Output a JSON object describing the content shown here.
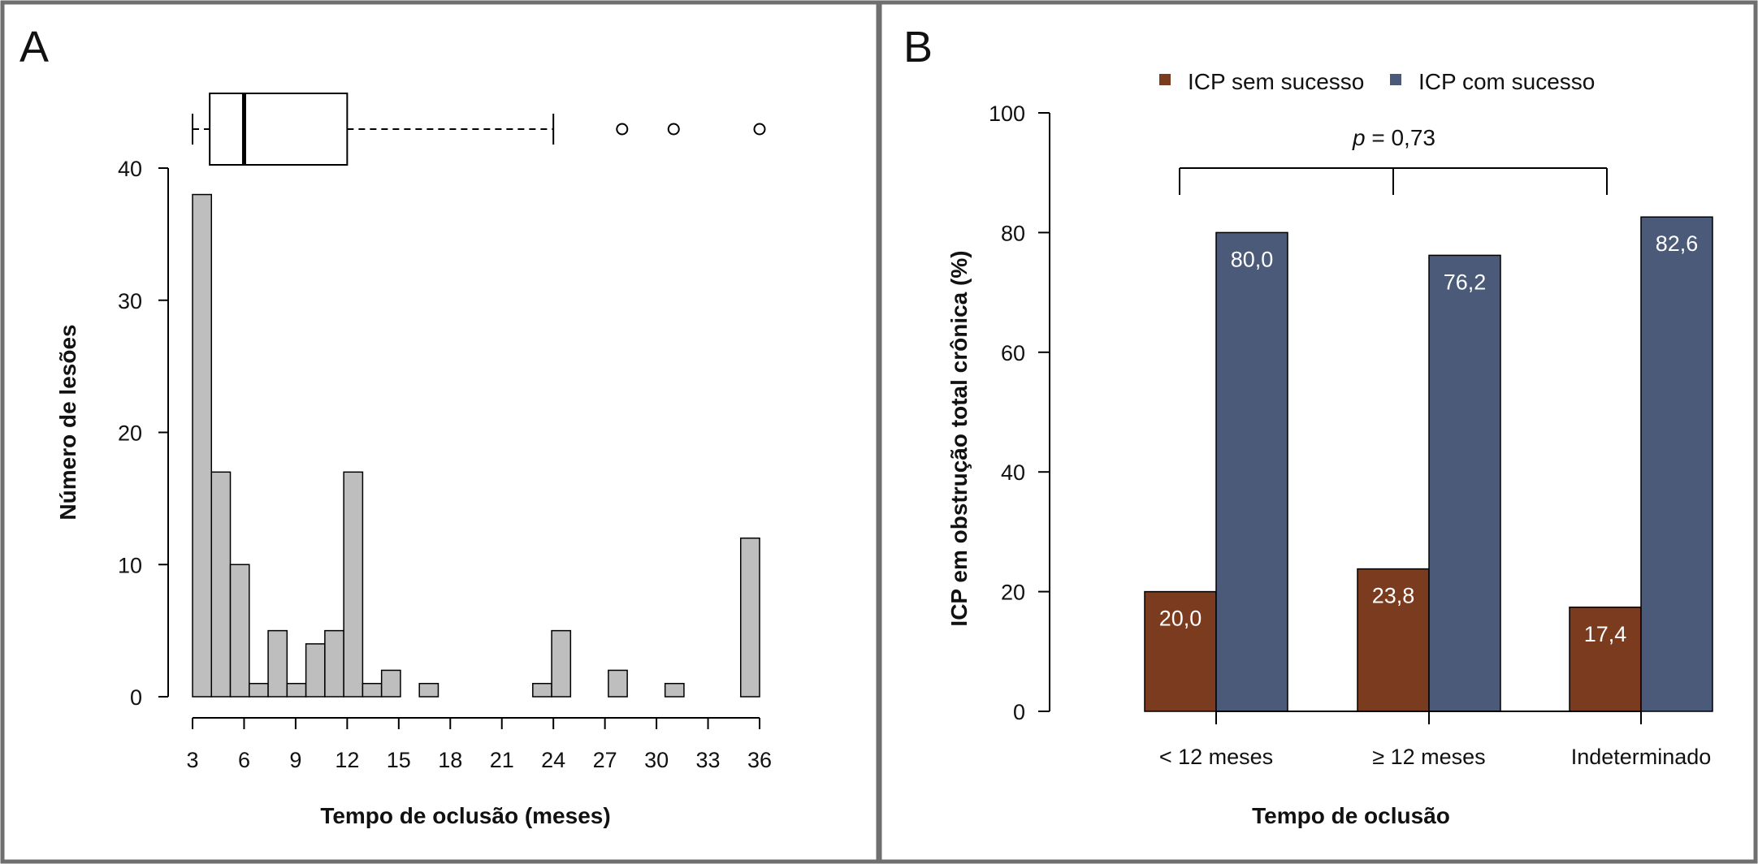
{
  "chart_data": [
    {
      "panel": "A",
      "type": "bar",
      "subtype": "histogram",
      "xlabel": "Tempo de oclusão (meses)",
      "ylabel": "Número de lesões",
      "xlim": [
        3,
        36
      ],
      "ylim": [
        0,
        40
      ],
      "xticks": [
        "3",
        "6",
        "9",
        "12",
        "15",
        "18",
        "21",
        "24",
        "27",
        "30",
        "33",
        "36"
      ],
      "yticks": [
        "0",
        "10",
        "20",
        "30",
        "40"
      ],
      "bin_width": 1.1,
      "bins": [
        {
          "start": 3.0,
          "end": 4.1,
          "count": 38
        },
        {
          "start": 4.1,
          "end": 5.2,
          "count": 17
        },
        {
          "start": 5.2,
          "end": 6.3,
          "count": 10
        },
        {
          "start": 6.3,
          "end": 7.4,
          "count": 1
        },
        {
          "start": 7.4,
          "end": 8.5,
          "count": 5
        },
        {
          "start": 8.5,
          "end": 9.6,
          "count": 1
        },
        {
          "start": 9.6,
          "end": 10.7,
          "count": 4
        },
        {
          "start": 10.7,
          "end": 11.8,
          "count": 5
        },
        {
          "start": 11.8,
          "end": 12.9,
          "count": 17
        },
        {
          "start": 12.9,
          "end": 14.0,
          "count": 1
        },
        {
          "start": 14.0,
          "end": 15.1,
          "count": 2
        },
        {
          "start": 15.1,
          "end": 16.2,
          "count": 0
        },
        {
          "start": 16.2,
          "end": 17.3,
          "count": 1
        },
        {
          "start": 17.3,
          "end": 18.4,
          "count": 0
        },
        {
          "start": 18.4,
          "end": 19.5,
          "count": 0
        },
        {
          "start": 19.5,
          "end": 20.6,
          "count": 0
        },
        {
          "start": 20.6,
          "end": 21.7,
          "count": 0
        },
        {
          "start": 21.7,
          "end": 22.8,
          "count": 0
        },
        {
          "start": 22.8,
          "end": 23.9,
          "count": 1
        },
        {
          "start": 23.9,
          "end": 25.0,
          "count": 5
        },
        {
          "start": 25.0,
          "end": 26.1,
          "count": 0
        },
        {
          "start": 26.1,
          "end": 27.2,
          "count": 0
        },
        {
          "start": 27.2,
          "end": 28.3,
          "count": 2
        },
        {
          "start": 28.3,
          "end": 29.4,
          "count": 0
        },
        {
          "start": 29.4,
          "end": 30.5,
          "count": 0
        },
        {
          "start": 30.5,
          "end": 31.6,
          "count": 1
        },
        {
          "start": 31.6,
          "end": 32.7,
          "count": 0
        },
        {
          "start": 32.7,
          "end": 33.8,
          "count": 0
        },
        {
          "start": 33.8,
          "end": 34.9,
          "count": 0
        },
        {
          "start": 34.9,
          "end": 36.0,
          "count": 12
        }
      ],
      "boxplot": {
        "whisker_low": 3,
        "q1": 4,
        "median": 6,
        "q3": 12,
        "whisker_high": 24,
        "outliers": [
          28,
          31,
          36
        ]
      },
      "bar_color": "#bebebe"
    },
    {
      "panel": "B",
      "type": "bar",
      "subtype": "grouped",
      "xlabel": "Tempo de oclusão",
      "ylabel": "ICP em obstrução total crônica (%)",
      "categories": [
        "< 12 meses",
        "≥ 12 meses",
        "Indeterminado"
      ],
      "ylim": [
        0,
        100
      ],
      "yticks": [
        "0",
        "20",
        "40",
        "60",
        "80",
        "100"
      ],
      "series": [
        {
          "name": "ICP sem sucesso",
          "color": "#7a3b1f",
          "values": [
            20.0,
            23.8,
            17.4
          ],
          "labels": [
            "20,0",
            "23,8",
            "17,4"
          ]
        },
        {
          "name": "ICP com sucesso",
          "color": "#4b5a78",
          "values": [
            80.0,
            76.2,
            82.6
          ],
          "labels": [
            "80,0",
            "76,2",
            "82,6"
          ]
        }
      ],
      "legend_position": "top",
      "annotation": {
        "p_symbol": "p",
        "p_text": " = 0,73"
      }
    }
  ]
}
